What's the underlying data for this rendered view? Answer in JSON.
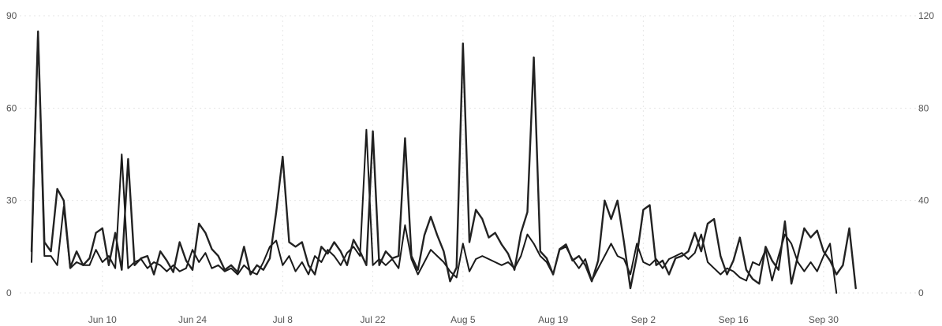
{
  "chart_data": {
    "type": "line",
    "x_axis": {
      "ticks": [
        "Jun 10",
        "Jun 24",
        "Jul 8",
        "Jul 22",
        "Aug 5",
        "Aug 19",
        "Sep 2",
        "Sep 16",
        "Sep 30"
      ],
      "tick_dates": [
        "2024-06-10",
        "2024-06-24",
        "2024-07-08",
        "2024-07-22",
        "2024-08-05",
        "2024-08-19",
        "2024-09-02",
        "2024-09-16",
        "2024-09-30"
      ],
      "range": [
        "2024-05-30",
        "2024-10-13"
      ]
    },
    "y_axis_left": {
      "ticks": [
        "0",
        "30",
        "60",
        "90"
      ],
      "ylim": [
        0,
        90
      ]
    },
    "y_axis_right": {
      "ticks": [
        "0",
        "40",
        "80",
        "120"
      ],
      "ylim": [
        0,
        120
      ]
    },
    "grid": true,
    "legend": "none",
    "series": [
      {
        "axis": "left",
        "color": "#1a1a1a",
        "points": [
          [
            "2024-05-30",
            10
          ],
          [
            "2024-05-31",
            85
          ],
          [
            "2024-06-01",
            12
          ],
          [
            "2024-06-02",
            12
          ],
          [
            "2024-06-03",
            9
          ],
          [
            "2024-06-04",
            28
          ],
          [
            "2024-06-05",
            8
          ],
          [
            "2024-06-06",
            10
          ],
          [
            "2024-06-07",
            9
          ],
          [
            "2024-06-08",
            9
          ],
          [
            "2024-06-09",
            14
          ],
          [
            "2024-06-10",
            10
          ],
          [
            "2024-06-11",
            12
          ],
          [
            "2024-06-12",
            8
          ],
          [
            "2024-06-13",
            45
          ],
          [
            "2024-06-14",
            8
          ],
          [
            "2024-06-15",
            10
          ],
          [
            "2024-06-16",
            11
          ],
          [
            "2024-06-17",
            8
          ],
          [
            "2024-06-18",
            10
          ],
          [
            "2024-06-19",
            9
          ],
          [
            "2024-06-20",
            7
          ],
          [
            "2024-06-21",
            9
          ],
          [
            "2024-06-22",
            7
          ],
          [
            "2024-06-23",
            8
          ],
          [
            "2024-06-24",
            14
          ],
          [
            "2024-06-25",
            10
          ],
          [
            "2024-06-26",
            13
          ],
          [
            "2024-06-27",
            8
          ],
          [
            "2024-06-28",
            9
          ],
          [
            "2024-06-29",
            7
          ],
          [
            "2024-06-30",
            8
          ],
          [
            "2024-07-01",
            6
          ],
          [
            "2024-07-02",
            9
          ],
          [
            "2024-07-03",
            7
          ],
          [
            "2024-07-04",
            6
          ],
          [
            "2024-07-05",
            10
          ],
          [
            "2024-07-06",
            15
          ],
          [
            "2024-07-07",
            17
          ],
          [
            "2024-07-08",
            9
          ],
          [
            "2024-07-09",
            12
          ],
          [
            "2024-07-10",
            7
          ],
          [
            "2024-07-11",
            10
          ],
          [
            "2024-07-12",
            6
          ],
          [
            "2024-07-13",
            12
          ],
          [
            "2024-07-14",
            10
          ],
          [
            "2024-07-15",
            14
          ],
          [
            "2024-07-16",
            12
          ],
          [
            "2024-07-17",
            9
          ],
          [
            "2024-07-18",
            13
          ],
          [
            "2024-07-19",
            15
          ],
          [
            "2024-07-20",
            12
          ],
          [
            "2024-07-21",
            53
          ],
          [
            "2024-07-22",
            9
          ],
          [
            "2024-07-23",
            11
          ],
          [
            "2024-07-24",
            9
          ],
          [
            "2024-07-25",
            11
          ],
          [
            "2024-07-26",
            8
          ],
          [
            "2024-07-27",
            22
          ],
          [
            "2024-07-28",
            11
          ],
          [
            "2024-07-29",
            6
          ],
          [
            "2024-07-30",
            10
          ],
          [
            "2024-07-31",
            14
          ],
          [
            "2024-08-01",
            12
          ],
          [
            "2024-08-02",
            10
          ],
          [
            "2024-08-03",
            7
          ],
          [
            "2024-08-04",
            5
          ],
          [
            "2024-08-05",
            16
          ],
          [
            "2024-08-06",
            7
          ],
          [
            "2024-08-07",
            11
          ],
          [
            "2024-08-08",
            12
          ],
          [
            "2024-08-09",
            11
          ],
          [
            "2024-08-10",
            10
          ],
          [
            "2024-08-11",
            9
          ],
          [
            "2024-08-12",
            10
          ],
          [
            "2024-08-13",
            8
          ],
          [
            "2024-08-14",
            12
          ],
          [
            "2024-08-15",
            19
          ],
          [
            "2024-08-16",
            16
          ],
          [
            "2024-08-17",
            12
          ],
          [
            "2024-08-18",
            10
          ],
          [
            "2024-08-19",
            6
          ],
          [
            "2024-08-20",
            14
          ],
          [
            "2024-08-21",
            15
          ],
          [
            "2024-08-22",
            11
          ],
          [
            "2024-08-23",
            8
          ],
          [
            "2024-08-24",
            11
          ],
          [
            "2024-08-25",
            4
          ],
          [
            "2024-08-26",
            8
          ],
          [
            "2024-08-27",
            12
          ],
          [
            "2024-08-28",
            16
          ],
          [
            "2024-08-29",
            12
          ],
          [
            "2024-08-30",
            11
          ],
          [
            "2024-08-31",
            6
          ],
          [
            "2024-09-01",
            16
          ],
          [
            "2024-09-02",
            10
          ],
          [
            "2024-09-03",
            9
          ],
          [
            "2024-09-04",
            11
          ],
          [
            "2024-09-05",
            8
          ],
          [
            "2024-09-06",
            11
          ],
          [
            "2024-09-07",
            12
          ],
          [
            "2024-09-08",
            13
          ],
          [
            "2024-09-09",
            11
          ],
          [
            "2024-09-10",
            13
          ],
          [
            "2024-09-11",
            19
          ],
          [
            "2024-09-12",
            10
          ],
          [
            "2024-09-13",
            8
          ],
          [
            "2024-09-14",
            6
          ],
          [
            "2024-09-15",
            8
          ],
          [
            "2024-09-16",
            7
          ],
          [
            "2024-09-17",
            5
          ],
          [
            "2024-09-18",
            4
          ],
          [
            "2024-09-19",
            10
          ],
          [
            "2024-09-20",
            9
          ],
          [
            "2024-09-21",
            14
          ],
          [
            "2024-09-22",
            4
          ],
          [
            "2024-09-23",
            12
          ],
          [
            "2024-09-24",
            19
          ],
          [
            "2024-09-25",
            16
          ],
          [
            "2024-09-26",
            10
          ],
          [
            "2024-09-27",
            7
          ],
          [
            "2024-09-28",
            10
          ],
          [
            "2024-09-29",
            7
          ],
          [
            "2024-09-30",
            12
          ],
          [
            "2024-10-01",
            16
          ],
          [
            "2024-10-02",
            0
          ]
        ]
      },
      {
        "axis": "right",
        "color": "#222222",
        "points": [
          [
            "2024-05-30",
            18
          ],
          [
            "2024-05-31",
            113
          ],
          [
            "2024-06-01",
            22
          ],
          [
            "2024-06-02",
            18
          ],
          [
            "2024-06-03",
            45
          ],
          [
            "2024-06-04",
            40
          ],
          [
            "2024-06-05",
            11
          ],
          [
            "2024-06-06",
            18
          ],
          [
            "2024-06-07",
            12
          ],
          [
            "2024-06-08",
            15
          ],
          [
            "2024-06-09",
            26
          ],
          [
            "2024-06-10",
            28
          ],
          [
            "2024-06-11",
            12
          ],
          [
            "2024-06-12",
            26
          ],
          [
            "2024-06-13",
            10
          ],
          [
            "2024-06-14",
            58
          ],
          [
            "2024-06-15",
            12
          ],
          [
            "2024-06-16",
            15
          ],
          [
            "2024-06-17",
            16
          ],
          [
            "2024-06-18",
            8
          ],
          [
            "2024-06-19",
            18
          ],
          [
            "2024-06-20",
            14
          ],
          [
            "2024-06-21",
            9
          ],
          [
            "2024-06-22",
            22
          ],
          [
            "2024-06-23",
            14
          ],
          [
            "2024-06-24",
            10
          ],
          [
            "2024-06-25",
            30
          ],
          [
            "2024-06-26",
            26
          ],
          [
            "2024-06-27",
            19
          ],
          [
            "2024-06-28",
            16
          ],
          [
            "2024-06-29",
            10
          ],
          [
            "2024-06-30",
            12
          ],
          [
            "2024-07-01",
            9
          ],
          [
            "2024-07-02",
            20
          ],
          [
            "2024-07-03",
            8
          ],
          [
            "2024-07-04",
            12
          ],
          [
            "2024-07-05",
            10
          ],
          [
            "2024-07-06",
            15
          ],
          [
            "2024-07-07",
            35
          ],
          [
            "2024-07-08",
            59
          ],
          [
            "2024-07-09",
            22
          ],
          [
            "2024-07-10",
            20
          ],
          [
            "2024-07-11",
            22
          ],
          [
            "2024-07-12",
            12
          ],
          [
            "2024-07-13",
            8
          ],
          [
            "2024-07-14",
            20
          ],
          [
            "2024-07-15",
            17
          ],
          [
            "2024-07-16",
            22
          ],
          [
            "2024-07-17",
            18
          ],
          [
            "2024-07-18",
            12
          ],
          [
            "2024-07-19",
            23
          ],
          [
            "2024-07-20",
            18
          ],
          [
            "2024-07-21",
            12
          ],
          [
            "2024-07-22",
            70
          ],
          [
            "2024-07-23",
            12
          ],
          [
            "2024-07-24",
            18
          ],
          [
            "2024-07-25",
            15
          ],
          [
            "2024-07-26",
            16
          ],
          [
            "2024-07-27",
            67
          ],
          [
            "2024-07-28",
            16
          ],
          [
            "2024-07-29",
            10
          ],
          [
            "2024-07-30",
            25
          ],
          [
            "2024-07-31",
            33
          ],
          [
            "2024-08-01",
            25
          ],
          [
            "2024-08-02",
            18
          ],
          [
            "2024-08-03",
            5
          ],
          [
            "2024-08-04",
            11
          ],
          [
            "2024-08-05",
            108
          ],
          [
            "2024-08-06",
            22
          ],
          [
            "2024-08-07",
            36
          ],
          [
            "2024-08-08",
            32
          ],
          [
            "2024-08-09",
            24
          ],
          [
            "2024-08-10",
            26
          ],
          [
            "2024-08-11",
            21
          ],
          [
            "2024-08-12",
            17
          ],
          [
            "2024-08-13",
            10
          ],
          [
            "2024-08-14",
            26
          ],
          [
            "2024-08-15",
            35
          ],
          [
            "2024-08-16",
            102
          ],
          [
            "2024-08-17",
            18
          ],
          [
            "2024-08-18",
            15
          ],
          [
            "2024-08-19",
            8
          ],
          [
            "2024-08-20",
            19
          ],
          [
            "2024-08-21",
            21
          ],
          [
            "2024-08-22",
            14
          ],
          [
            "2024-08-23",
            16
          ],
          [
            "2024-08-24",
            12
          ],
          [
            "2024-08-25",
            5
          ],
          [
            "2024-08-26",
            14
          ],
          [
            "2024-08-27",
            40
          ],
          [
            "2024-08-28",
            32
          ],
          [
            "2024-08-29",
            40
          ],
          [
            "2024-08-30",
            22
          ],
          [
            "2024-08-31",
            2
          ],
          [
            "2024-09-01",
            16
          ],
          [
            "2024-09-02",
            36
          ],
          [
            "2024-09-03",
            38
          ],
          [
            "2024-09-04",
            12
          ],
          [
            "2024-09-05",
            14
          ],
          [
            "2024-09-06",
            8
          ],
          [
            "2024-09-07",
            15
          ],
          [
            "2024-09-08",
            16
          ],
          [
            "2024-09-09",
            18
          ],
          [
            "2024-09-10",
            26
          ],
          [
            "2024-09-11",
            18
          ],
          [
            "2024-09-12",
            30
          ],
          [
            "2024-09-13",
            32
          ],
          [
            "2024-09-14",
            16
          ],
          [
            "2024-09-15",
            8
          ],
          [
            "2024-09-16",
            14
          ],
          [
            "2024-09-17",
            24
          ],
          [
            "2024-09-18",
            10
          ],
          [
            "2024-09-19",
            6
          ],
          [
            "2024-09-20",
            4
          ],
          [
            "2024-09-21",
            20
          ],
          [
            "2024-09-22",
            14
          ],
          [
            "2024-09-23",
            10
          ],
          [
            "2024-09-24",
            31
          ],
          [
            "2024-09-25",
            4
          ],
          [
            "2024-09-26",
            16
          ],
          [
            "2024-09-27",
            28
          ],
          [
            "2024-09-28",
            24
          ],
          [
            "2024-09-29",
            27
          ],
          [
            "2024-09-30",
            18
          ],
          [
            "2024-10-01",
            14
          ],
          [
            "2024-10-02",
            8
          ],
          [
            "2024-10-03",
            12
          ],
          [
            "2024-10-04",
            28
          ],
          [
            "2024-10-05",
            2
          ]
        ]
      }
    ]
  }
}
